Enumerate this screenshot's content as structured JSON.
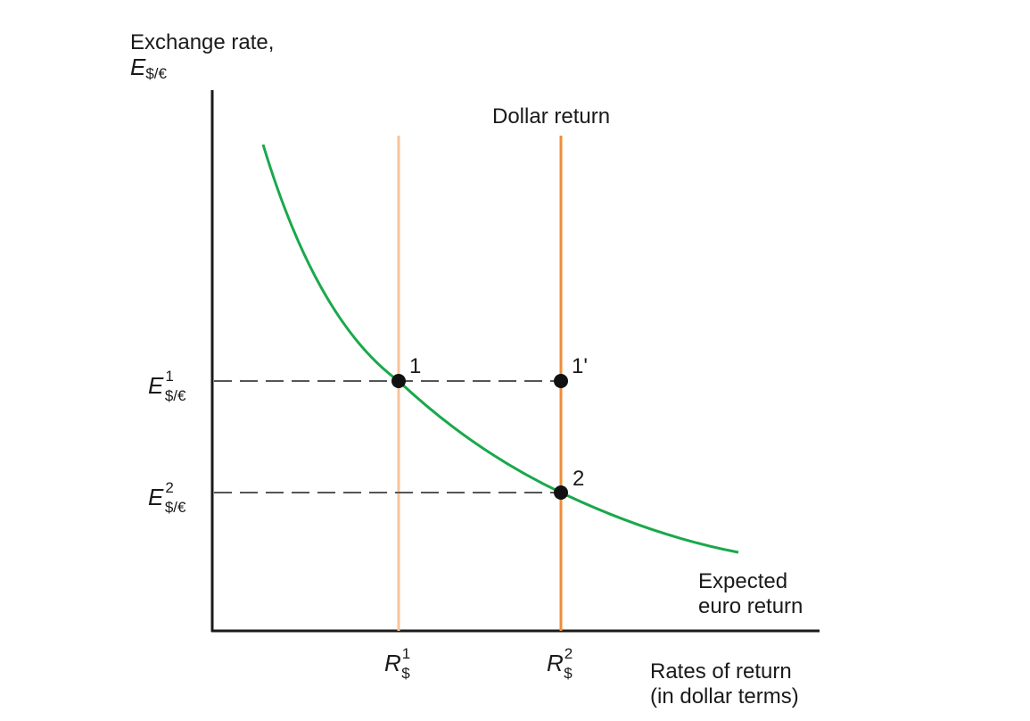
{
  "diagram": {
    "y_axis_title_line1": "Exchange rate,",
    "y_axis_symbol": "E",
    "y_axis_symbol_sub": "$/€",
    "x_axis_title_line1": "Rates of return",
    "x_axis_title_line2": "(in dollar terms)",
    "dollar_return_label": "Dollar return",
    "euro_return_line1": "Expected",
    "euro_return_line2": "euro return",
    "y_ticks": [
      {
        "symbol": "E",
        "sup": "1",
        "sub": "$/€"
      },
      {
        "symbol": "E",
        "sup": "2",
        "sub": "$/€"
      }
    ],
    "x_ticks": [
      {
        "symbol": "R",
        "sup": "1",
        "sub": "$"
      },
      {
        "symbol": "R",
        "sup": "2",
        "sub": "$"
      }
    ],
    "points": [
      {
        "label": "1"
      },
      {
        "label": "1'"
      },
      {
        "label": "2"
      }
    ],
    "colors": {
      "axis": "#1a1a1a",
      "euro_curve": "#1aa84b",
      "dollar_return_1": "#f7c39a",
      "dollar_return_2": "#ef8c3a",
      "dashed": "#555555",
      "point": "#111111"
    }
  }
}
